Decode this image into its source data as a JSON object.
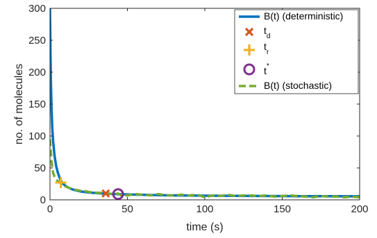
{
  "chart_data": {
    "type": "line",
    "xlabel": "time (s)",
    "ylabel": "no. of molecules",
    "xlim": [
      0,
      200
    ],
    "ylim": [
      0,
      300
    ],
    "xticks": [
      "0",
      "50",
      "100",
      "150",
      "200"
    ],
    "yticks": [
      "0",
      "50",
      "100",
      "150",
      "200",
      "250",
      "300"
    ],
    "grid": false,
    "legend_position": "top-right",
    "series": [
      {
        "name": "B(t) (deterministic)",
        "style": "solid-line",
        "color": "#0072BD",
        "x": [
          0,
          0.3,
          0.6,
          1,
          1.5,
          2,
          3,
          4,
          5,
          6,
          7,
          8,
          10,
          12,
          15,
          20,
          25,
          30,
          35,
          40,
          45,
          50,
          60,
          70,
          80,
          100,
          120,
          140,
          160,
          180,
          200
        ],
        "y": [
          300,
          230,
          185,
          145,
          112,
          92,
          68,
          53,
          43,
          36,
          30,
          26,
          22,
          19,
          16,
          13,
          11.5,
          10.5,
          9.8,
          9.2,
          8.8,
          8.4,
          7.8,
          7.3,
          7,
          6.5,
          6.2,
          6,
          5.8,
          5.6,
          5.5
        ]
      },
      {
        "name": "t_d",
        "style": "x-marker",
        "color": "#D95319",
        "x": [
          36
        ],
        "y": [
          10
        ]
      },
      {
        "name": "t_r",
        "style": "plus-marker",
        "color": "#EDB120",
        "x": [
          7
        ],
        "y": [
          27
        ]
      },
      {
        "name": "t^*",
        "style": "circle-marker",
        "color": "#7E2F8E",
        "x": [
          44
        ],
        "y": [
          9
        ]
      },
      {
        "name": "B(t) (stochastic)",
        "style": "dashed-line",
        "color": "#77AC30",
        "x": [
          0,
          1,
          2,
          3,
          4,
          5,
          6,
          7,
          8,
          9,
          10,
          12,
          14,
          16,
          18,
          20,
          22,
          24,
          26,
          28,
          30,
          32,
          34,
          36,
          38,
          40,
          42,
          44,
          46,
          50,
          55,
          60,
          65,
          70,
          75,
          80,
          85,
          90,
          95,
          100,
          105,
          110,
          115,
          120,
          125,
          130,
          135,
          140,
          145,
          150,
          155,
          160,
          165,
          170,
          175,
          180,
          185,
          190,
          195,
          200
        ],
        "y": [
          95,
          60,
          42,
          36,
          32,
          29,
          28,
          26,
          24,
          23,
          21,
          19,
          17,
          16,
          15,
          14,
          14,
          13,
          12,
          12,
          11,
          11,
          11,
          10,
          10,
          9,
          9,
          10,
          7,
          7,
          9,
          8,
          7,
          9,
          7,
          7,
          8,
          7,
          8,
          4,
          7,
          6,
          8,
          6,
          7,
          7,
          6,
          7,
          5,
          6,
          7,
          6,
          5,
          4,
          6,
          5,
          5,
          4,
          5,
          4
        ]
      }
    ],
    "legend": [
      {
        "label": "B(t) (deterministic)",
        "series": 0
      },
      {
        "label_main": "t",
        "label_sub": "d",
        "series": 1
      },
      {
        "label_main": "t",
        "label_sub": "r",
        "series": 2
      },
      {
        "label_main": "t",
        "label_sup": "*",
        "series": 3
      },
      {
        "label": "B(t) (stochastic)",
        "series": 4
      }
    ]
  }
}
